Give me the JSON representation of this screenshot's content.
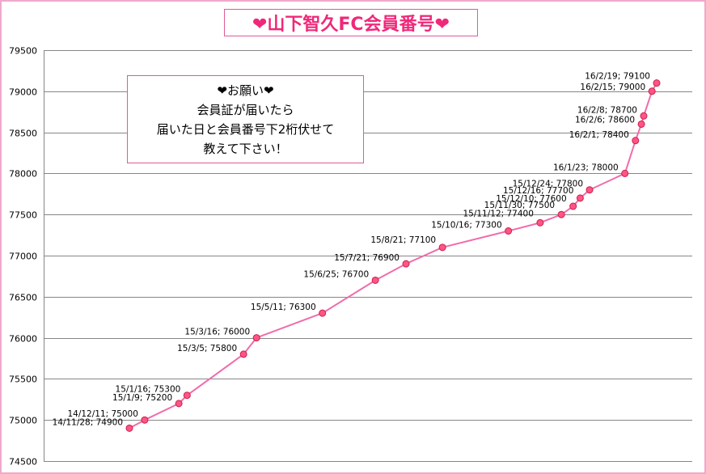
{
  "title": "❤山下智久FC会員番号❤",
  "note": {
    "lines": [
      "❤お願い❤",
      "会員証が届いたら",
      "届いた日と会員番号下2桁伏せて",
      "教えて下さい！"
    ]
  },
  "colors": {
    "line": "#f06cac",
    "marker_fill": "#ff5585",
    "marker_stroke": "#c8204c",
    "grid": "#868686",
    "frame": "#f0a8cc"
  },
  "chart_data": {
    "type": "line",
    "ylim": [
      74500,
      79500
    ],
    "yticks": [
      74500,
      75000,
      75500,
      76000,
      76500,
      77000,
      77500,
      78000,
      78500,
      79000,
      79500
    ],
    "grid": true,
    "series": [
      {
        "points": [
          {
            "x": "14/11/28",
            "y": 74900,
            "label": "14/11/28; 74900"
          },
          {
            "x": "14/12/11",
            "y": 75000,
            "label": "14/12/11; 75000"
          },
          {
            "x": "15/1/9",
            "y": 75200,
            "label": "15/1/9; 75200"
          },
          {
            "x": "15/1/16",
            "y": 75300,
            "label": "15/1/16; 75300"
          },
          {
            "x": "15/3/5",
            "y": 75800,
            "label": "15/3/5; 75800"
          },
          {
            "x": "15/3/16",
            "y": 76000,
            "label": "15/3/16; 76000"
          },
          {
            "x": "15/5/11",
            "y": 76300,
            "label": "15/5/11; 76300"
          },
          {
            "x": "15/6/25",
            "y": 76700,
            "label": "15/6/25; 76700"
          },
          {
            "x": "15/7/21",
            "y": 76900,
            "label": "15/7/21; 76900"
          },
          {
            "x": "15/8/21",
            "y": 77100,
            "label": "15/8/21; 77100"
          },
          {
            "x": "15/10/16",
            "y": 77300,
            "label": "15/10/16; 77300"
          },
          {
            "x": "15/11/12",
            "y": 77400,
            "label": "15/11/12; 77400"
          },
          {
            "x": "15/11/30",
            "y": 77500,
            "label": "15/11/30; 77500"
          },
          {
            "x": "15/12/10",
            "y": 77600,
            "label": "15/12/10; 77600"
          },
          {
            "x": "15/12/16",
            "y": 77700,
            "label": "15/12/16; 77700"
          },
          {
            "x": "15/12/24",
            "y": 77800,
            "label": "15/12/24; 77800"
          },
          {
            "x": "16/1/23",
            "y": 78000,
            "label": "16/1/23; 78000"
          },
          {
            "x": "16/2/1",
            "y": 78400,
            "label": "16/2/1; 78400"
          },
          {
            "x": "16/2/6",
            "y": 78600,
            "label": "16/2/6; 78600"
          },
          {
            "x": "16/2/8",
            "y": 78700,
            "label": "16/2/8; 78700"
          },
          {
            "x": "16/2/15",
            "y": 79000,
            "label": "16/2/15; 79000"
          },
          {
            "x": "16/2/19",
            "y": 79100,
            "label": "16/2/19; 79100"
          }
        ]
      }
    ]
  }
}
